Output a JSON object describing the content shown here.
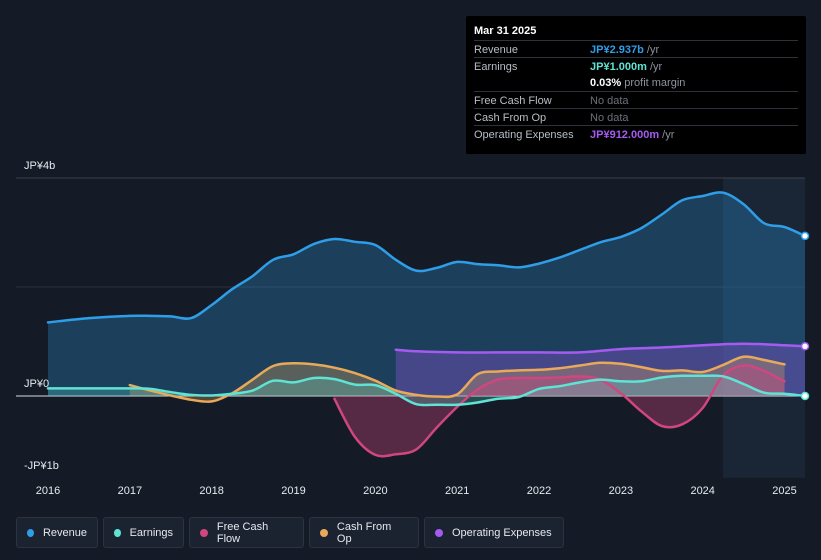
{
  "tooltip": {
    "date": "Mar 31 2025",
    "rows": [
      {
        "label": "Revenue",
        "value": "JP¥2.937b",
        "suffix": " /yr",
        "color": "#2f9ee8"
      },
      {
        "label": "Earnings",
        "value": "JP¥1.000m",
        "suffix": " /yr",
        "color": "#5ee3d4"
      },
      {
        "label": "",
        "value": "0.03%",
        "suffix": " profit margin",
        "color": "#ffffff"
      },
      {
        "label": "Free Cash Flow",
        "value": "",
        "suffix": "No data",
        "color": "#6b717c"
      },
      {
        "label": "Cash From Op",
        "value": "",
        "suffix": "No data",
        "color": "#6b717c"
      },
      {
        "label": "Operating Expenses",
        "value": "JP¥912.000m",
        "suffix": " /yr",
        "color": "#a55bf2"
      }
    ]
  },
  "colors": {
    "revenue": "#2f9ee8",
    "earnings": "#5ee3d4",
    "fcf": "#d0467f",
    "cfo": "#e8a95b",
    "opex": "#a55bf2"
  },
  "legend": [
    {
      "label": "Revenue",
      "color": "#2f9ee8"
    },
    {
      "label": "Earnings",
      "color": "#5ee3d4"
    },
    {
      "label": "Free Cash Flow",
      "color": "#d0467f"
    },
    {
      "label": "Cash From Op",
      "color": "#e8a95b"
    },
    {
      "label": "Operating Expenses",
      "color": "#a55bf2"
    }
  ],
  "chart_data": {
    "type": "area",
    "title": "",
    "xlabel": "",
    "ylabel": "",
    "y_tick_labels": [
      "JP¥4b",
      "JP¥0",
      "-JP¥1b"
    ],
    "ylim": [
      -1.5,
      4.0
    ],
    "xlim": [
      2016.0,
      2025.25
    ],
    "x_tick_labels": [
      "2016",
      "2017",
      "2018",
      "2019",
      "2020",
      "2021",
      "2022",
      "2023",
      "2024",
      "2025"
    ],
    "x_ticks": [
      2016,
      2017,
      2018,
      2019,
      2020,
      2021,
      2022,
      2023,
      2024,
      2025
    ],
    "highlight_from": 2024.25,
    "units": "JP¥ billions",
    "series": [
      {
        "name": "Revenue",
        "key": "revenue",
        "x": [
          2016.0,
          2016.5,
          2017.0,
          2017.25,
          2017.5,
          2017.75,
          2018.0,
          2018.25,
          2018.5,
          2018.75,
          2019.0,
          2019.25,
          2019.5,
          2019.75,
          2020.0,
          2020.25,
          2020.5,
          2020.75,
          2021.0,
          2021.25,
          2021.5,
          2021.75,
          2022.0,
          2022.25,
          2022.5,
          2022.75,
          2023.0,
          2023.25,
          2023.5,
          2023.75,
          2024.0,
          2024.25,
          2024.5,
          2024.75,
          2025.0,
          2025.25
        ],
        "values": [
          1.35,
          1.43,
          1.47,
          1.47,
          1.46,
          1.43,
          1.67,
          1.96,
          2.2,
          2.5,
          2.6,
          2.79,
          2.88,
          2.83,
          2.77,
          2.5,
          2.3,
          2.35,
          2.46,
          2.42,
          2.4,
          2.36,
          2.43,
          2.54,
          2.68,
          2.82,
          2.92,
          3.08,
          3.33,
          3.59,
          3.67,
          3.73,
          3.52,
          3.17,
          3.1,
          2.937
        ]
      },
      {
        "name": "Earnings",
        "key": "earnings",
        "x": [
          2016.0,
          2016.5,
          2017.0,
          2017.25,
          2017.5,
          2017.75,
          2018.0,
          2018.25,
          2018.5,
          2018.75,
          2019.0,
          2019.25,
          2019.5,
          2019.75,
          2020.0,
          2020.25,
          2020.5,
          2020.75,
          2021.0,
          2021.25,
          2021.5,
          2021.75,
          2022.0,
          2022.25,
          2022.5,
          2022.75,
          2023.0,
          2023.25,
          2023.5,
          2023.75,
          2024.0,
          2024.25,
          2024.5,
          2024.75,
          2025.0,
          2025.25
        ],
        "values": [
          0.14,
          0.14,
          0.14,
          0.13,
          0.07,
          0.02,
          0.01,
          0.04,
          0.1,
          0.28,
          0.25,
          0.33,
          0.31,
          0.21,
          0.2,
          0.04,
          -0.15,
          -0.16,
          -0.16,
          -0.12,
          -0.05,
          -0.02,
          0.13,
          0.18,
          0.25,
          0.3,
          0.27,
          0.27,
          0.34,
          0.37,
          0.37,
          0.36,
          0.22,
          0.06,
          0.04,
          0.001
        ]
      },
      {
        "name": "Free Cash Flow",
        "key": "fcf",
        "x": [
          2019.5,
          2019.75,
          2020.0,
          2020.25,
          2020.5,
          2020.75,
          2021.0,
          2021.25,
          2021.5,
          2021.75,
          2022.0,
          2022.25,
          2022.5,
          2022.75,
          2023.0,
          2023.25,
          2023.5,
          2023.75,
          2024.0,
          2024.25,
          2024.5,
          2024.75,
          2025.0
        ],
        "values": [
          -0.05,
          -0.75,
          -1.08,
          -1.07,
          -0.98,
          -0.58,
          -0.2,
          0.12,
          0.3,
          0.33,
          0.33,
          0.34,
          0.36,
          0.3,
          0.05,
          -0.28,
          -0.55,
          -0.52,
          -0.22,
          0.38,
          0.56,
          0.46,
          0.27
        ]
      },
      {
        "name": "Cash From Op",
        "key": "cfo",
        "x": [
          2017.0,
          2017.25,
          2017.5,
          2017.75,
          2018.0,
          2018.25,
          2018.5,
          2018.75,
          2019.0,
          2019.25,
          2019.5,
          2019.75,
          2020.0,
          2020.25,
          2020.5,
          2020.75,
          2021.0,
          2021.25,
          2021.5,
          2021.75,
          2022.0,
          2022.25,
          2022.5,
          2022.75,
          2023.0,
          2023.25,
          2023.5,
          2023.75,
          2024.0,
          2024.25,
          2024.5,
          2024.75,
          2025.0
        ],
        "values": [
          0.2,
          0.1,
          0.01,
          -0.07,
          -0.1,
          0.05,
          0.3,
          0.55,
          0.6,
          0.58,
          0.52,
          0.42,
          0.28,
          0.1,
          0.02,
          -0.01,
          0.03,
          0.4,
          0.45,
          0.47,
          0.48,
          0.51,
          0.56,
          0.61,
          0.59,
          0.53,
          0.46,
          0.47,
          0.44,
          0.57,
          0.72,
          0.66,
          0.58
        ]
      },
      {
        "name": "Operating Expenses",
        "key": "opex",
        "x": [
          2020.25,
          2020.5,
          2021.0,
          2021.5,
          2022.0,
          2022.5,
          2023.0,
          2023.5,
          2024.0,
          2024.25,
          2024.5,
          2024.75,
          2025.0,
          2025.25
        ],
        "values": [
          0.85,
          0.82,
          0.8,
          0.8,
          0.8,
          0.8,
          0.86,
          0.89,
          0.93,
          0.95,
          0.96,
          0.95,
          0.93,
          0.912
        ]
      }
    ]
  }
}
